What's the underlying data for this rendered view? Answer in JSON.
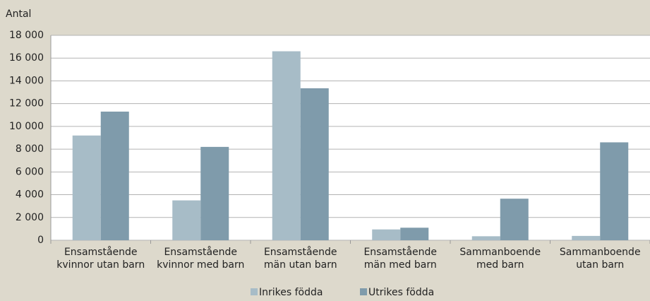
{
  "chart_data": {
    "type": "bar",
    "y_label": "Antal",
    "categories": [
      [
        "Ensamstående",
        "kvinnor utan barn"
      ],
      [
        "Ensamstående",
        "kvinnor med barn"
      ],
      [
        "Ensamstående",
        "män utan barn"
      ],
      [
        "Ensamstående",
        "män med barn"
      ],
      [
        "Sammanboende",
        "med barn"
      ],
      [
        "Sammanboende",
        "utan barn"
      ]
    ],
    "series": [
      {
        "name": "Inrikes födda",
        "color": "#a7bcc7",
        "values": [
          9200,
          3500,
          16600,
          950,
          350,
          380
        ]
      },
      {
        "name": "Utrikes födda",
        "color": "#7f9bab",
        "values": [
          11300,
          8200,
          13350,
          1100,
          3650,
          8600
        ]
      }
    ],
    "ylim": [
      0,
      18000
    ],
    "yticks": [
      0,
      {
        "value": 2000,
        "label": "2 000"
      },
      {
        "value": 4000,
        "label": "4 000"
      },
      {
        "value": 6000,
        "label": "6 000"
      },
      {
        "value": 8000,
        "label": "8 000"
      },
      {
        "value": 10000,
        "label": "10 000"
      },
      {
        "value": 12000,
        "label": "12 000"
      },
      {
        "value": 14000,
        "label": "14 000"
      },
      {
        "value": 16000,
        "label": "16 000"
      },
      {
        "value": 18000,
        "label": "18 000"
      }
    ],
    "grid": true,
    "legend": "bottom"
  }
}
